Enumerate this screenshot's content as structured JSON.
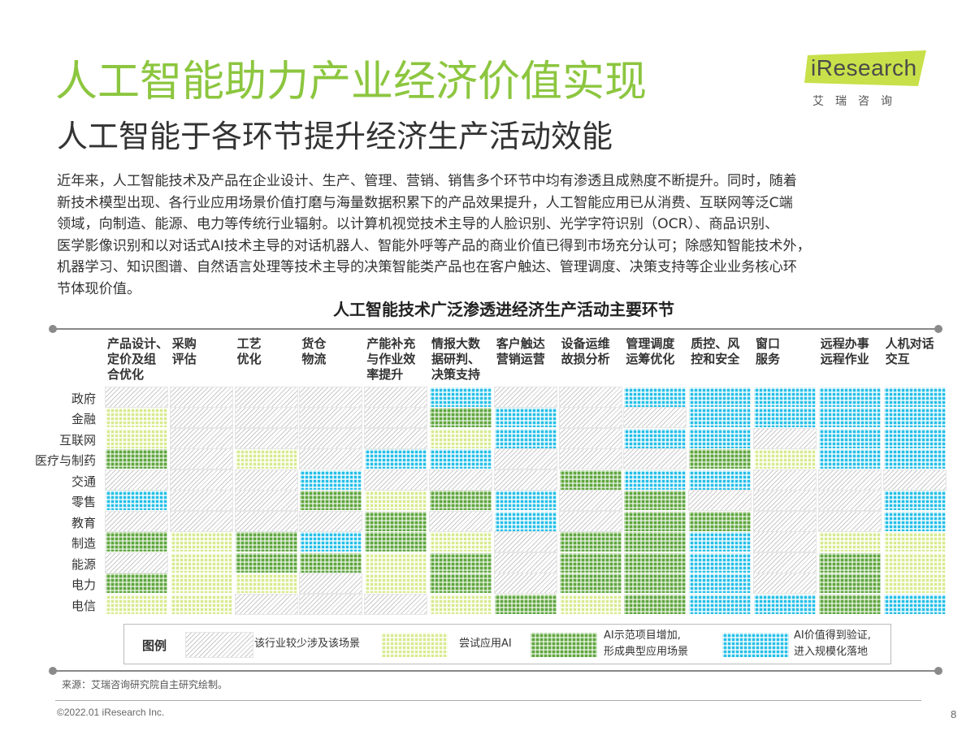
{
  "title": "人工智能助力产业经济价值实现",
  "subtitle": "人工智能于各环节提升经济生产活动效能",
  "logo": {
    "text": "iResearch",
    "cn": "艾瑞咨询",
    "color_green": "#c8e04a",
    "color_dark": "#4a4a4a"
  },
  "paragraph": [
    "近年来，人工智能技术及产品在企业设计、生产、管理、营销、销售多个环节中均有渗透且成熟度不断提升。同时，随着",
    "新技术模型出现、各行业应用场景价值打磨与海量数据积累下的产品效果提升，人工智能应用已从消费、互联网等泛C端",
    "领域，向制造、能源、电力等传统行业辐射。以计算机视觉技术主导的人脸识别、光学字符识别（OCR）、商品识别、",
    "医学影像识别和以对话式AI技术主导的对话机器人、智能外呼等产品的商业价值已得到市场充分认可；除感知智能技术外，",
    "机器学习、知识图谱、自然语言处理等技术主导的决策智能类产品也在客户触达、管理调度、决策支持等企业业务核心环",
    "节体现价值。"
  ],
  "chart_data": {
    "type": "heatmap",
    "title": "人工智能技术广泛渗透进经济生产活动主要环节",
    "columns": [
      "产品设计、\n定价及组\n合优化",
      "采购\n评估",
      "工艺\n优化",
      "货仓\n物流",
      "产能补充\n与作业效\n率提升",
      "情报大数\n据研判、\n决策支持",
      "客户触达\n营销运营",
      "设备运维\n故损分析",
      "管理调度\n运筹优化",
      "质控、风\n控和安全",
      "窗口\n服务",
      "远程办事\n远程作业",
      "人机对话\n交互"
    ],
    "rows": [
      "政府",
      "金融",
      "互联网",
      "医疗与制药",
      "交通",
      "零售",
      "教育",
      "制造",
      "能源",
      "电力",
      "电信"
    ],
    "levels": [
      [
        0,
        0,
        0,
        0,
        0,
        3,
        0,
        0,
        3,
        3,
        3,
        3,
        3
      ],
      [
        1,
        0,
        0,
        0,
        0,
        2,
        3,
        0,
        0,
        3,
        3,
        3,
        3
      ],
      [
        1,
        0,
        0,
        0,
        0,
        1,
        3,
        0,
        3,
        3,
        0,
        3,
        3
      ],
      [
        2,
        0,
        1,
        0,
        3,
        3,
        0,
        0,
        0,
        2,
        1,
        3,
        3
      ],
      [
        0,
        0,
        0,
        3,
        0,
        0,
        0,
        2,
        3,
        3,
        0,
        0,
        0
      ],
      [
        3,
        0,
        0,
        2,
        1,
        2,
        3,
        0,
        2,
        0,
        0,
        0,
        3
      ],
      [
        0,
        0,
        0,
        0,
        2,
        0,
        3,
        0,
        2,
        2,
        0,
        0,
        3
      ],
      [
        2,
        1,
        2,
        3,
        2,
        1,
        0,
        2,
        2,
        3,
        0,
        1,
        1
      ],
      [
        0,
        1,
        2,
        2,
        1,
        2,
        0,
        2,
        2,
        3,
        0,
        2,
        1
      ],
      [
        2,
        1,
        1,
        0,
        1,
        2,
        0,
        2,
        2,
        3,
        0,
        2,
        1
      ],
      [
        1,
        1,
        0,
        0,
        0,
        1,
        2,
        1,
        2,
        3,
        3,
        2,
        3
      ]
    ],
    "legend": [
      {
        "level": 0,
        "label": "该行业较少涉及该场景"
      },
      {
        "level": 1,
        "label": "尝试应用AI"
      },
      {
        "level": 2,
        "label": "AI示范项目增加,\n形成典型应用场景"
      },
      {
        "level": 3,
        "label": "AI价值得到验证,\n进入规模化落地"
      }
    ],
    "legend_title": "图例",
    "colors": {
      "level1": "#d7ea8e",
      "level2": "#5fa63e",
      "level3": "#25bfe8"
    }
  },
  "source": "来源：艾瑞咨询研究院自主研究绘制。",
  "copyright": "©2022.01 iResearch Inc.",
  "page_number": "8"
}
